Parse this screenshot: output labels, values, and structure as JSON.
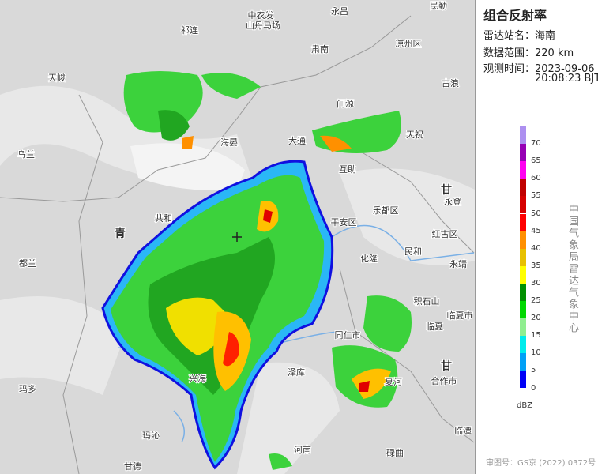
{
  "panel": {
    "title": "组合反射率",
    "station_label": "雷达站名：",
    "station": "海南",
    "range_label": "数据范围：",
    "range": "220 km",
    "time_label": "观测时间：",
    "date": "2023-09-06",
    "time": "20:08:23 BJT"
  },
  "legend": {
    "levels": [
      {
        "label": "70",
        "color": "#ad90f0"
      },
      {
        "label": "65",
        "color": "#9600b4"
      },
      {
        "label": "60",
        "color": "#ff00f0"
      },
      {
        "label": "55",
        "color": "#c00000"
      },
      {
        "label": "50",
        "color": "#d60000"
      },
      {
        "label": "45",
        "color": "#ff0000"
      },
      {
        "label": "40",
        "color": "#ff9000"
      },
      {
        "label": "35",
        "color": "#e7c000"
      },
      {
        "label": "30",
        "color": "#ffff00"
      },
      {
        "label": "25",
        "color": "#019000"
      },
      {
        "label": "20",
        "color": "#00d800"
      },
      {
        "label": "15",
        "color": "#90ee90"
      },
      {
        "label": "10",
        "color": "#00ecec"
      },
      {
        "label": "5",
        "color": "#01a0f6"
      },
      {
        "label": "0",
        "color": "#0000f6"
      }
    ],
    "unit": "dBZ",
    "vertical_text": "中国气象局雷达气象中心"
  },
  "footer": "审图号：GS京 (2022) 0372号",
  "map": {
    "places": [
      "中农发",
      "山丹马场",
      "永昌",
      "民勤",
      "祁连",
      "肃南",
      "凉州区",
      "天峻",
      "古浪",
      "门源",
      "海晏",
      "大通",
      "天祝",
      "乌兰",
      "互助",
      "乐都区",
      "永登",
      "甘",
      "共和",
      "青",
      "平安区",
      "红古区",
      "民和",
      "化隆",
      "永靖",
      "都兰",
      "积石山",
      "临夏市",
      "临夏",
      "同仁市",
      "泽库",
      "兴海",
      "合作市",
      "夏河",
      "玛多",
      "甘",
      "玛沁",
      "碌曲",
      "河南",
      "临潭",
      "甘德"
    ]
  }
}
